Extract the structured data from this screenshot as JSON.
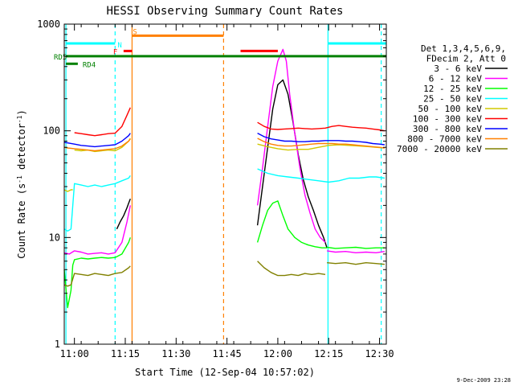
{
  "chart_data": {
    "type": "line",
    "title": "HESSI Observing Summary Count Rates",
    "xlabel": "Start Time (12-Sep-04 10:57:02)",
    "ylabel": "Count Rate (s",
    "ylabel_sup1": "-1",
    "ylabel_mid": " detector",
    "ylabel_sup2": "-1",
    "ylabel_end": ")",
    "x_unit": "minutes since 10:57:02",
    "xlim": [
      0,
      95
    ],
    "ylim": [
      1,
      1000
    ],
    "y_scale": "log",
    "x_ticks": [
      {
        "label": "11:00",
        "value": 3
      },
      {
        "label": "11:15",
        "value": 18
      },
      {
        "label": "11:30",
        "value": 33
      },
      {
        "label": "11:45",
        "value": 48
      },
      {
        "label": "12:00",
        "value": 63
      },
      {
        "label": "12:15",
        "value": 78
      },
      {
        "label": "12:30",
        "value": 93
      }
    ],
    "y_ticks": [
      {
        "label": "1",
        "value": 1
      },
      {
        "label": "10",
        "value": 10
      },
      {
        "label": "100",
        "value": 100
      },
      {
        "label": "1000",
        "value": 1000
      }
    ],
    "legend": {
      "header": [
        "Det 1,3,4,5,6,9,",
        "FDecim 2, Att 0"
      ],
      "placement": "right"
    },
    "series": [
      {
        "name": "3 - 6 keV",
        "color": "#000000",
        "segments": [
          {
            "x": [
              15.5,
              16.5,
              17.5,
              18.5,
              19,
              19.5
            ],
            "y": [
              12,
              14,
              16,
              19,
              21,
              23
            ]
          },
          {
            "x": [
              57,
              58.5,
              60,
              61.5,
              63,
              64.5,
              66,
              67.5,
              69,
              70.5,
              72,
              73.5,
              75,
              76.5,
              77.5
            ],
            "y": [
              13,
              30,
              70,
              160,
              270,
              300,
              220,
              120,
              60,
              35,
              24,
              18,
              13,
              10,
              8
            ]
          }
        ]
      },
      {
        "name": "6 - 12 keV",
        "color": "#ff00ff",
        "segments": [
          {
            "x": [
              0,
              1.5,
              3,
              5,
              7,
              9,
              11,
              13,
              15,
              17,
              18.5,
              19.5
            ],
            "y": [
              7.2,
              7,
              7.5,
              7.3,
              7,
              7.1,
              7.2,
              7,
              7.2,
              9,
              14,
              20
            ]
          },
          {
            "x": [
              57,
              58.5,
              60,
              61.5,
              63,
              64.5,
              65.5,
              66.5,
              68,
              69.5,
              71,
              72.5,
              74,
              75.5,
              77
            ],
            "y": [
              20,
              45,
              110,
              260,
              450,
              580,
              450,
              220,
              95,
              45,
              25,
              17,
              12,
              10,
              9
            ]
          },
          {
            "x": [
              77.5,
              80,
              83,
              86,
              89,
              92,
              94.5
            ],
            "y": [
              7.5,
              7.3,
              7.4,
              7.2,
              7.3,
              7.2,
              7.4
            ]
          }
        ]
      },
      {
        "name": "12 - 25 keV",
        "color": "#00ff00",
        "segments": [
          {
            "x": [
              0,
              1,
              2,
              2.5,
              3,
              5,
              7,
              9,
              11,
              13,
              15,
              17,
              19,
              19.5
            ],
            "y": [
              5,
              2.2,
              3.2,
              5.5,
              6.2,
              6.4,
              6.3,
              6.4,
              6.5,
              6.4,
              6.5,
              7,
              9,
              10
            ]
          },
          {
            "x": [
              57,
              58.5,
              60,
              61.5,
              63,
              64.5,
              66,
              68,
              70,
              72,
              74,
              76,
              77.5
            ],
            "y": [
              9,
              13,
              18,
              21,
              22,
              16,
              12,
              10,
              9,
              8.5,
              8.2,
              8,
              8
            ]
          },
          {
            "x": [
              77.5,
              80,
              83,
              86,
              89,
              92,
              94.5
            ],
            "y": [
              8.1,
              7.9,
              8,
              8.1,
              7.9,
              8,
              8
            ]
          }
        ]
      },
      {
        "name": "25 - 50 keV",
        "color": "#00ffff",
        "segments": [
          {
            "x": [
              0,
              1,
              2,
              3,
              5,
              7,
              9,
              11,
              13,
              15,
              17,
              19,
              19.5
            ],
            "y": [
              12,
              11.5,
              12,
              32,
              31,
              30,
              31,
              30,
              31,
              32,
              34,
              36,
              38
            ]
          },
          {
            "x": [
              57,
              60,
              63,
              66,
              69,
              72,
              75,
              78,
              81,
              84,
              87,
              90,
              92,
              94.5
            ],
            "y": [
              44,
              40,
              38,
              37,
              36,
              35,
              34,
              33,
              34,
              36,
              36,
              37,
              37,
              36
            ]
          }
        ]
      },
      {
        "name": "50 - 100 keV",
        "color": "#d0c800",
        "segments": [
          {
            "x": [
              0,
              1,
              2,
              2.5
            ],
            "y": [
              28,
              27,
              28,
              28
            ]
          },
          {
            "x": [
              3,
              5,
              7,
              9,
              11,
              13,
              15,
              17,
              19,
              19.5
            ],
            "y": [
              66,
              65,
              66,
              64,
              65,
              66,
              65,
              70,
              80,
              85
            ]
          },
          {
            "x": [
              57,
              60,
              63,
              66,
              69,
              72,
              75,
              78,
              81,
              84,
              87,
              90,
              92,
              94.5
            ],
            "y": [
              75,
              71,
              68,
              66,
              67,
              67,
              70,
              73,
              74,
              73,
              72,
              71,
              70,
              69
            ]
          }
        ]
      },
      {
        "name": "100 - 300 keV",
        "color": "#ff0000",
        "segments": [
          {
            "x": [
              3,
              5,
              7,
              9,
              11,
              13,
              15,
              17,
              18.5,
              19.5
            ],
            "y": [
              96,
              94,
              92,
              90,
              92,
              94,
              95,
              110,
              140,
              165
            ]
          },
          {
            "x": [
              57,
              59,
              61,
              63,
              65,
              67,
              69,
              71,
              73,
              75,
              77,
              79,
              81,
              83,
              85,
              87,
              89,
              91,
              93,
              94.5
            ],
            "y": [
              120,
              110,
              104,
              103,
              104,
              105,
              106,
              105,
              104,
              105,
              106,
              110,
              112,
              110,
              108,
              107,
              106,
              104,
              102,
              100
            ]
          }
        ]
      },
      {
        "name": "300 - 800 keV",
        "color": "#0000ff",
        "segments": [
          {
            "x": [
              0,
              1,
              3,
              5,
              7,
              9,
              11,
              13,
              15,
              17,
              19,
              19.5
            ],
            "y": [
              78,
              77,
              75,
              73,
              72,
              71,
              72,
              73,
              74,
              80,
              90,
              95
            ]
          },
          {
            "x": [
              57,
              59,
              61,
              63,
              65,
              67,
              69,
              71,
              73,
              75,
              77,
              79,
              81,
              83,
              85,
              87,
              89,
              91,
              93,
              94.5
            ],
            "y": [
              95,
              88,
              84,
              82,
              80,
              80,
              79,
              79,
              80,
              80,
              81,
              81,
              81,
              80,
              80,
              79,
              78,
              76,
              75,
              74
            ]
          }
        ]
      },
      {
        "name": "800 - 7000 keV",
        "color": "#ff8000",
        "segments": [
          {
            "x": [
              0,
              1,
              3,
              5,
              7,
              9,
              11,
              13,
              15,
              17,
              19,
              19.5
            ],
            "y": [
              70,
              69,
              68,
              67,
              66,
              65,
              66,
              67,
              68,
              72,
              80,
              84
            ]
          },
          {
            "x": [
              57,
              59,
              61,
              63,
              65,
              67,
              69,
              71,
              73,
              75,
              77,
              79,
              81,
              83,
              85,
              87,
              89,
              91,
              93,
              94.5
            ],
            "y": [
              85,
              79,
              75,
              73,
              72,
              72,
              73,
              74,
              75,
              76,
              76,
              76,
              75,
              75,
              74,
              73,
              72,
              71,
              70,
              69
            ]
          }
        ]
      },
      {
        "name": "7000 - 20000 keV",
        "color": "#808000",
        "segments": [
          {
            "x": [
              0,
              1,
              2,
              3,
              5,
              7,
              9,
              11,
              13,
              15,
              17,
              19,
              19.5
            ],
            "y": [
              3.6,
              3.5,
              3.6,
              4.6,
              4.5,
              4.4,
              4.6,
              4.5,
              4.4,
              4.6,
              4.7,
              5.2,
              5.4
            ]
          },
          {
            "x": [
              57,
              59,
              61,
              63,
              65,
              67,
              69,
              71,
              73,
              75,
              77
            ],
            "y": [
              6,
              5.2,
              4.7,
              4.4,
              4.4,
              4.5,
              4.4,
              4.6,
              4.5,
              4.6,
              4.5
            ]
          },
          {
            "x": [
              77.5,
              80,
              83,
              86,
              89,
              92,
              94.5
            ],
            "y": [
              5.8,
              5.7,
              5.8,
              5.6,
              5.8,
              5.7,
              5.6
            ]
          }
        ]
      }
    ],
    "vertical_lines": [
      {
        "x": 0.5,
        "color": "#00ffff",
        "style": "solid"
      },
      {
        "x": 15,
        "color": "#00ffff",
        "style": "dashed"
      },
      {
        "x": 20,
        "color": "#ff8000",
        "style": "solid"
      },
      {
        "x": 47,
        "color": "#ff8000",
        "style": "dashed"
      },
      {
        "x": 77.8,
        "color": "#00ffff",
        "style": "solid"
      },
      {
        "x": 93.5,
        "color": "#00ffff",
        "style": "dashed"
      }
    ],
    "flag_bars": [
      {
        "label": "",
        "color": "#00ffff",
        "x": [
          0.5,
          15
        ],
        "y": 660
      },
      {
        "label": "",
        "color": "#00ffff",
        "x": [
          77.8,
          95
        ],
        "y": 660
      },
      {
        "label": "N",
        "color": "#00ffff",
        "x": [
          15,
          15
        ],
        "y": 660
      },
      {
        "label": "S",
        "color": "#ff8000",
        "x": [
          20,
          47
        ],
        "y": 780
      },
      {
        "label": "F",
        "color": "#ff0000",
        "x": [
          17.5,
          20
        ],
        "y": 560
      },
      {
        "label": "",
        "color": "#ff0000",
        "x": [
          52,
          63
        ],
        "y": 560
      },
      {
        "label": "RD5",
        "color": "#008000",
        "x": [
          0.5,
          95
        ],
        "y": 500
      },
      {
        "label": "RD4",
        "color": "#008000",
        "x": [
          0.5,
          4
        ],
        "y": 425
      }
    ],
    "footer_date": "9-Dec-2009 23:28"
  }
}
